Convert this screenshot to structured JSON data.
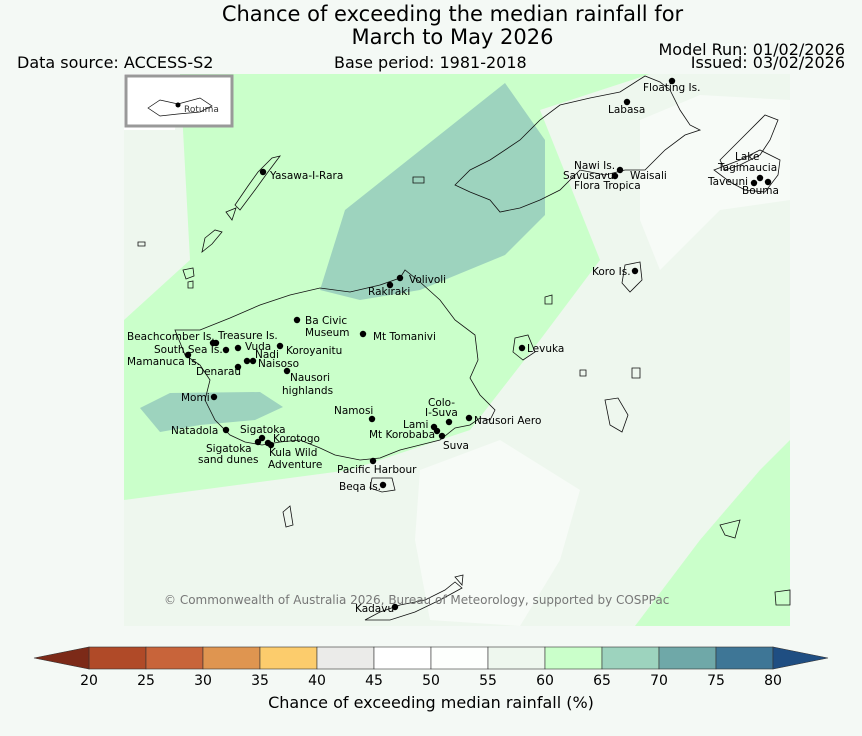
{
  "title_line1": "Chance of exceeding the median rainfall for",
  "title_line2": "March to May 2026",
  "data_source": "Data source: ACCESS-S2",
  "base_period": "Base period: 1981-2018",
  "model_run": "Model Run: 01/02/2026",
  "issued": "Issued: 03/02/2026",
  "inset_label": "Rotuma",
  "copyright": "© Commonwealth of Australia 2026, Bureau of Meteorology, supported by COSPPac",
  "colorbar": {
    "label": "Chance of exceeding median rainfall (%)",
    "ticks": [
      "20",
      "25",
      "30",
      "35",
      "40",
      "45",
      "50",
      "55",
      "60",
      "65",
      "70",
      "75",
      "80"
    ],
    "colors": [
      "#b04a28",
      "#c8643a",
      "#df9550",
      "#fccc6c",
      "#ebebe9",
      "#ffffff",
      "#fdfffd",
      "#eef7ee",
      "#caffca",
      "#9dd3be",
      "#6fa8a8",
      "#3e7696",
      "#1f4e82",
      "#7c2a18"
    ]
  },
  "places": [
    {
      "name": "Floating Is."
    },
    {
      "name": "Labasa"
    },
    {
      "name": "Nawi Is."
    },
    {
      "name": "Savusavu"
    },
    {
      "name": "Waisali"
    },
    {
      "name": "Flora Tropica"
    },
    {
      "name": "Lake"
    },
    {
      "name": "Tagimaucia"
    },
    {
      "name": "Taveuni"
    },
    {
      "name": "Bouma"
    },
    {
      "name": "Yasawa-I-Rara"
    },
    {
      "name": "Volivoli"
    },
    {
      "name": "Rakiraki"
    },
    {
      "name": "Koro Is."
    },
    {
      "name": "Ba Civic"
    },
    {
      "name": "Museum"
    },
    {
      "name": "Mt Tomanivi"
    },
    {
      "name": "Beachcomber Is."
    },
    {
      "name": "Treasure Is."
    },
    {
      "name": "South Sea Is."
    },
    {
      "name": "Vuda"
    },
    {
      "name": "Koroyanitu"
    },
    {
      "name": "Mamanuca Is."
    },
    {
      "name": "Nadi"
    },
    {
      "name": "Naisoso"
    },
    {
      "name": "Denarau"
    },
    {
      "name": "Levuka"
    },
    {
      "name": "Nausori"
    },
    {
      "name": "highlands"
    },
    {
      "name": "Momi"
    },
    {
      "name": "Namosi"
    },
    {
      "name": "Colo-"
    },
    {
      "name": "I-Suva"
    },
    {
      "name": "Lami"
    },
    {
      "name": "Nausori Aero"
    },
    {
      "name": "Mt Korobaba"
    },
    {
      "name": "Suva"
    },
    {
      "name": "Natadola"
    },
    {
      "name": "Sigatoka"
    },
    {
      "name": "Korotogo"
    },
    {
      "name": "Sigatoka"
    },
    {
      "name": "sand dunes"
    },
    {
      "name": "Kula Wild"
    },
    {
      "name": "Adventure"
    },
    {
      "name": "Pacific Harbour"
    },
    {
      "name": "Beqa Is."
    },
    {
      "name": "Kadavu"
    }
  ]
}
